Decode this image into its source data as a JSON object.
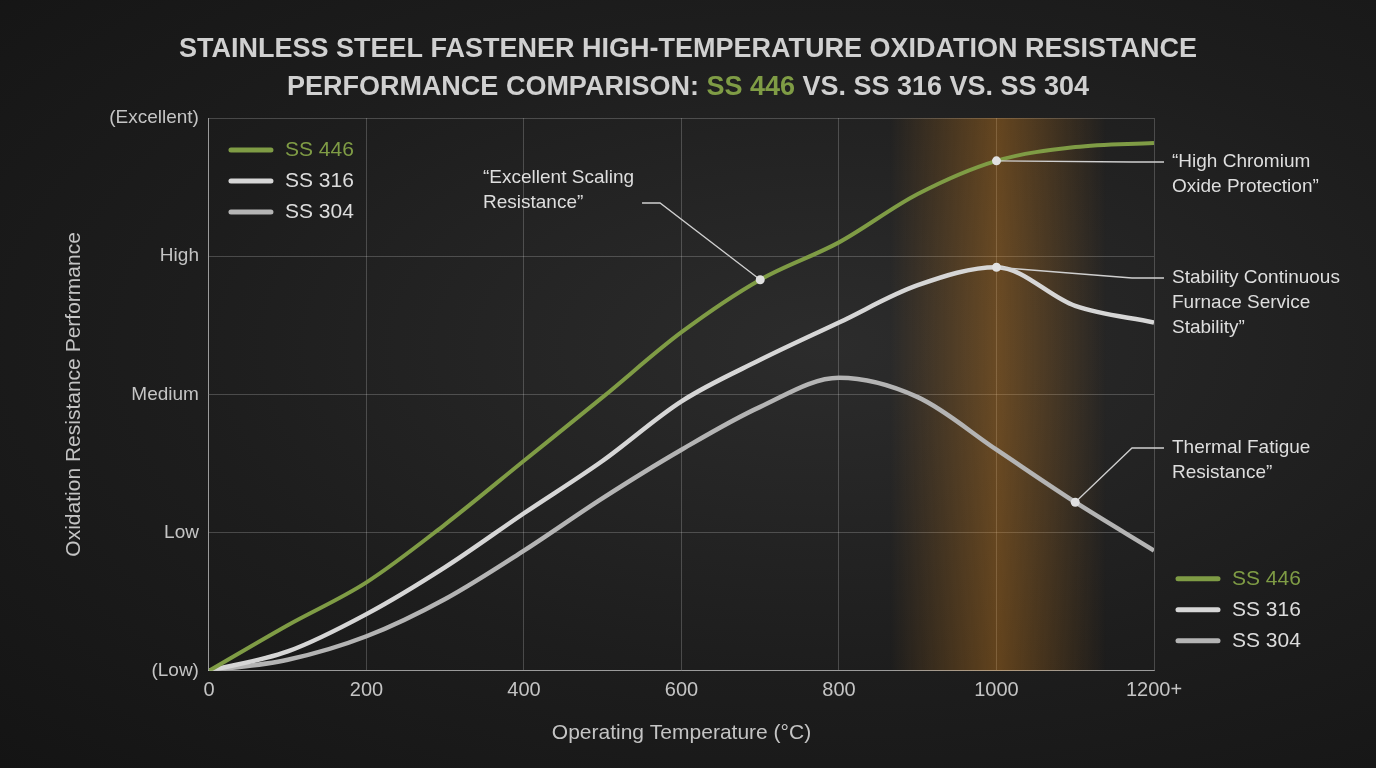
{
  "chart_data": {
    "type": "line",
    "title": "STAINLESS STEEL FASTENER HIGH-TEMPERATURE OXIDATION RESISTANCE PERFORMANCE COMPARISON: SS 446 VS. SS 316 VS. SS 304",
    "x_label": "Operating Temperature (°C)",
    "y_label": "Oxidation Resistance Performance",
    "x": [
      0,
      100,
      200,
      300,
      400,
      500,
      600,
      700,
      800,
      900,
      1000,
      1100,
      1200
    ],
    "series": [
      {
        "name": "SS 446",
        "color": "#7f9c45",
        "values": [
          0,
          0.33,
          0.64,
          1.06,
          1.52,
          1.98,
          2.45,
          2.83,
          3.1,
          3.45,
          3.69,
          3.79,
          3.82
        ]
      },
      {
        "name": "SS 316",
        "color": "#d6d6d6",
        "values": [
          0,
          0.14,
          0.41,
          0.75,
          1.14,
          1.52,
          1.95,
          2.25,
          2.52,
          2.79,
          2.92,
          2.64,
          2.52
        ]
      },
      {
        "name": "SS 304",
        "color": "#b4b4b4",
        "values": [
          0,
          0.08,
          0.25,
          0.52,
          0.87,
          1.25,
          1.6,
          1.91,
          2.12,
          1.98,
          1.6,
          1.22,
          0.87
        ]
      }
    ],
    "xlim": [
      0,
      1200
    ],
    "xticks": [
      0,
      200,
      400,
      600,
      800,
      1000,
      {
        "value": 1200,
        "label": "1200+"
      }
    ],
    "ylim": [
      0,
      4
    ],
    "yticks": [
      {
        "value": 0,
        "label": "(Low)"
      },
      {
        "value": 1,
        "label": "Low"
      },
      {
        "value": 2,
        "label": "Medium"
      },
      {
        "value": 3,
        "label": "High"
      },
      {
        "value": 4,
        "label": "(Excellent)"
      }
    ],
    "grid": true,
    "legend": "upper left",
    "annotations": [
      {
        "text": "“Excellent Scaling Resistance”",
        "series": "SS 446",
        "x": 700
      },
      {
        "text": "“High Chromium Oxide Protection”",
        "series": "SS 446",
        "x": 1000
      },
      {
        "text": "Stability Continuous Furnace Service Stability”",
        "series": "SS 316",
        "x": 1000
      },
      {
        "text": "Thermal Fatigue Resistance”",
        "series": "SS 304",
        "x": 1100
      }
    ]
  }
}
